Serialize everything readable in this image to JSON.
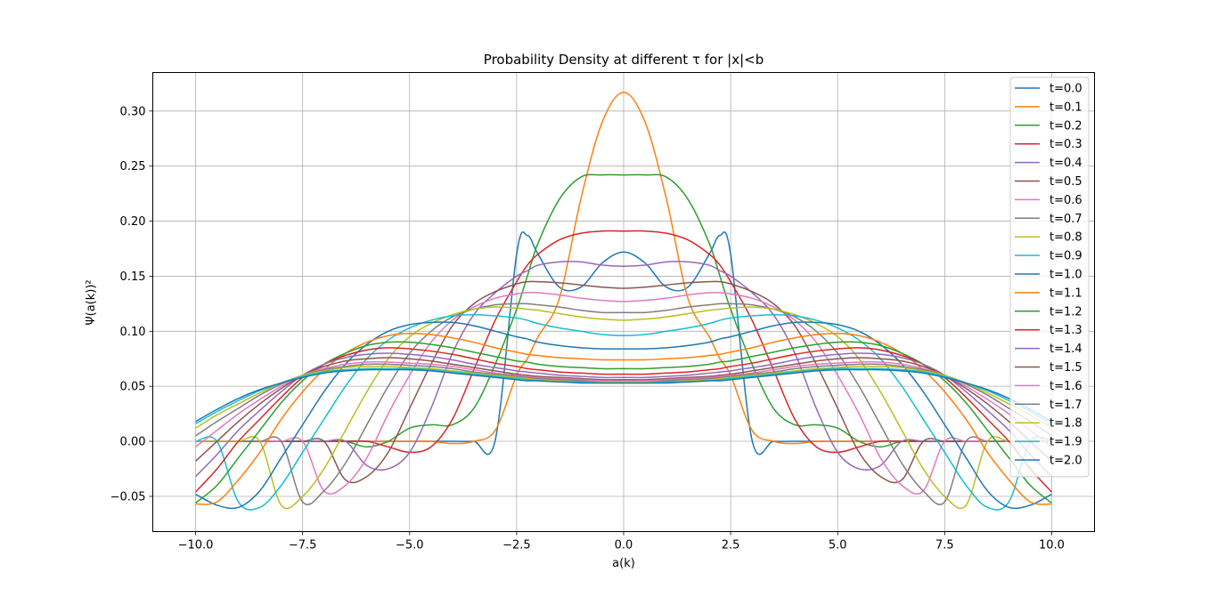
{
  "chart_data": {
    "type": "line",
    "title": "Probability Density at different τ for |x|<b",
    "xlabel": "a(k)",
    "ylabel": "Ψ(a(k))²",
    "xlim": [
      -11,
      11
    ],
    "ylim": [
      -0.082,
      0.335
    ],
    "xticks": [
      -10,
      -7.5,
      -5,
      -2.5,
      0,
      2.5,
      5,
      7.5,
      10
    ],
    "xtick_labels": [
      "−10.0",
      "−7.5",
      "−5.0",
      "−2.5",
      "0.0",
      "2.5",
      "5.0",
      "7.5",
      "10.0"
    ],
    "yticks": [
      -0.05,
      0,
      0.05,
      0.1,
      0.15,
      0.2,
      0.25,
      0.3
    ],
    "ytick_labels": [
      "−0.05",
      "0.00",
      "0.05",
      "0.10",
      "0.15",
      "0.20",
      "0.25",
      "0.30"
    ],
    "grid": true,
    "legend_position": "top-right",
    "x": [
      -10,
      -9.5,
      -9,
      -8.5,
      -8,
      -7.5,
      -7,
      -6.5,
      -6,
      -5.5,
      -5,
      -4.5,
      -4,
      -3.5,
      -3,
      -2.5,
      -2.25,
      -2,
      -1.5,
      -1,
      -0.5,
      0,
      0.5,
      1,
      1.5,
      2,
      2.25,
      2.5,
      3,
      3.5,
      4,
      4.5,
      5,
      5.5,
      6,
      6.5,
      7,
      7.5,
      8,
      8.5,
      9,
      9.5,
      10
    ],
    "series": [
      {
        "name": "t=0.0",
        "color": "#1f77b4",
        "values": [
          0,
          0,
          0,
          0,
          0,
          0,
          0,
          0,
          0,
          0,
          0,
          0,
          0,
          0,
          0.001,
          0.17,
          0.187,
          0.17,
          0.14,
          0.14,
          0.162,
          0.172,
          0.162,
          0.14,
          0.14,
          0.17,
          0.187,
          0.17,
          0.001,
          0,
          0,
          0,
          0,
          0,
          0,
          0,
          0,
          0,
          0,
          0,
          0,
          0,
          0
        ]
      },
      {
        "name": "t=0.1",
        "color": "#ff7f0e",
        "values": [
          0,
          0,
          0,
          0,
          0,
          0,
          0,
          0,
          0,
          0,
          0,
          0,
          -0.002,
          0,
          0.01,
          0.06,
          0.075,
          0.095,
          0.13,
          0.22,
          0.29,
          0.317,
          0.29,
          0.22,
          0.13,
          0.095,
          0.075,
          0.06,
          0.01,
          0,
          -0.002,
          0,
          0,
          0,
          0,
          0,
          0,
          0,
          0,
          0,
          0,
          0,
          0
        ]
      },
      {
        "name": "t=0.2",
        "color": "#2ca02c",
        "values": [
          0,
          0,
          0,
          0,
          0,
          0,
          0,
          0,
          -0.005,
          0,
          0.012,
          0.015,
          0.015,
          0.03,
          0.07,
          0.12,
          0.15,
          0.18,
          0.22,
          0.24,
          0.242,
          0.242,
          0.242,
          0.24,
          0.22,
          0.18,
          0.15,
          0.12,
          0.07,
          0.03,
          0.015,
          0.015,
          0.012,
          0,
          -0.005,
          0,
          0,
          0,
          0,
          0,
          0,
          0,
          0
        ]
      },
      {
        "name": "t=0.3",
        "color": "#d62728",
        "values": [
          0,
          0,
          0,
          0,
          0,
          0,
          0,
          0,
          0,
          -0.005,
          -0.01,
          -0.005,
          0.02,
          0.065,
          0.11,
          0.145,
          0.16,
          0.17,
          0.183,
          0.189,
          0.191,
          0.191,
          0.191,
          0.189,
          0.183,
          0.17,
          0.16,
          0.145,
          0.11,
          0.065,
          0.02,
          -0.005,
          -0.01,
          -0.005,
          0,
          0,
          0,
          0,
          0,
          0,
          0,
          0,
          0
        ]
      },
      {
        "name": "t=0.4",
        "color": "#9467bd",
        "values": [
          0,
          0,
          0,
          0,
          0,
          0,
          0,
          0,
          -0.022,
          -0.025,
          -0.01,
          0.03,
          0.08,
          0.115,
          0.135,
          0.15,
          0.155,
          0.16,
          0.163,
          0.163,
          0.16,
          0.159,
          0.16,
          0.163,
          0.163,
          0.16,
          0.155,
          0.15,
          0.135,
          0.115,
          0.08,
          0.03,
          -0.01,
          -0.025,
          -0.022,
          0,
          0,
          0,
          0,
          0,
          0,
          0,
          0
        ]
      },
      {
        "name": "t=0.5",
        "color": "#8c564b",
        "values": [
          0,
          0,
          0,
          0,
          0,
          0,
          0,
          -0.035,
          -0.032,
          -0.01,
          0.03,
          0.07,
          0.105,
          0.125,
          0.136,
          0.143,
          0.145,
          0.145,
          0.144,
          0.142,
          0.14,
          0.139,
          0.14,
          0.142,
          0.144,
          0.145,
          0.145,
          0.143,
          0.136,
          0.125,
          0.105,
          0.07,
          0.03,
          -0.01,
          -0.032,
          -0.035,
          0,
          0,
          0,
          0,
          0,
          0,
          0
        ]
      },
      {
        "name": "t=0.6",
        "color": "#e377c2",
        "values": [
          0,
          0,
          0,
          0,
          0,
          0,
          -0.045,
          -0.04,
          -0.015,
          0.025,
          0.06,
          0.09,
          0.11,
          0.122,
          0.13,
          0.134,
          0.135,
          0.135,
          0.133,
          0.13,
          0.128,
          0.127,
          0.128,
          0.13,
          0.133,
          0.135,
          0.135,
          0.134,
          0.13,
          0.122,
          0.11,
          0.09,
          0.06,
          0.025,
          -0.015,
          -0.04,
          -0.045,
          0,
          0,
          0,
          0,
          0,
          0
        ]
      },
      {
        "name": "t=0.7",
        "color": "#7f7f7f",
        "values": [
          0,
          0,
          0,
          0,
          0,
          -0.055,
          -0.045,
          -0.02,
          0.015,
          0.05,
          0.08,
          0.1,
          0.113,
          0.12,
          0.124,
          0.125,
          0.125,
          0.124,
          0.122,
          0.119,
          0.117,
          0.117,
          0.117,
          0.119,
          0.122,
          0.124,
          0.125,
          0.125,
          0.124,
          0.12,
          0.113,
          0.1,
          0.08,
          0.05,
          0.015,
          -0.02,
          -0.045,
          -0.055,
          0,
          0,
          0,
          0,
          0
        ]
      },
      {
        "name": "t=0.8",
        "color": "#bcbd22",
        "values": [
          0,
          0,
          0,
          0,
          -0.058,
          -0.05,
          -0.025,
          0.01,
          0.045,
          0.075,
          0.095,
          0.107,
          0.115,
          0.12,
          0.122,
          0.121,
          0.12,
          0.119,
          0.116,
          0.113,
          0.111,
          0.11,
          0.111,
          0.113,
          0.116,
          0.119,
          0.12,
          0.121,
          0.122,
          0.12,
          0.115,
          0.107,
          0.095,
          0.075,
          0.045,
          0.01,
          -0.025,
          -0.05,
          -0.058,
          0,
          0,
          0,
          0
        ]
      },
      {
        "name": "t=0.9",
        "color": "#17becf",
        "values": [
          0,
          0,
          -0.055,
          -0.06,
          -0.04,
          -0.01,
          0.02,
          0.05,
          0.075,
          0.092,
          0.103,
          0.11,
          0.114,
          0.115,
          0.114,
          0.112,
          0.11,
          0.107,
          0.103,
          0.1,
          0.097,
          0.096,
          0.097,
          0.1,
          0.103,
          0.107,
          0.11,
          0.112,
          0.114,
          0.115,
          0.114,
          0.11,
          0.103,
          0.092,
          0.075,
          0.05,
          0.02,
          -0.01,
          -0.04,
          -0.06,
          -0.055,
          0,
          0
        ]
      },
      {
        "name": "t=1.0",
        "color": "#1f77b4",
        "values": [
          -0.048,
          -0.058,
          -0.06,
          -0.045,
          -0.015,
          0.015,
          0.045,
          0.07,
          0.088,
          0.1,
          0.106,
          0.108,
          0.108,
          0.105,
          0.1,
          0.095,
          0.093,
          0.09,
          0.087,
          0.085,
          0.084,
          0.084,
          0.084,
          0.085,
          0.087,
          0.09,
          0.093,
          0.095,
          0.1,
          0.105,
          0.108,
          0.108,
          0.106,
          0.1,
          0.088,
          0.07,
          0.045,
          0.015,
          -0.015,
          -0.045,
          -0.06,
          -0.058,
          -0.048
        ]
      },
      {
        "name": "t=1.1",
        "color": "#ff7f0e",
        "values": [
          -0.057,
          -0.055,
          -0.035,
          -0.01,
          0.02,
          0.045,
          0.065,
          0.08,
          0.09,
          0.096,
          0.098,
          0.097,
          0.094,
          0.09,
          0.085,
          0.081,
          0.079,
          0.078,
          0.076,
          0.075,
          0.074,
          0.074,
          0.074,
          0.075,
          0.076,
          0.078,
          0.079,
          0.081,
          0.085,
          0.09,
          0.094,
          0.097,
          0.098,
          0.096,
          0.09,
          0.08,
          0.065,
          0.045,
          0.02,
          -0.01,
          -0.035,
          -0.055,
          -0.057
        ]
      },
      {
        "name": "t=1.2",
        "color": "#2ca02c",
        "values": [
          -0.056,
          -0.04,
          -0.015,
          0.01,
          0.035,
          0.055,
          0.07,
          0.08,
          0.087,
          0.09,
          0.09,
          0.088,
          0.085,
          0.081,
          0.077,
          0.073,
          0.072,
          0.07,
          0.068,
          0.067,
          0.066,
          0.066,
          0.066,
          0.067,
          0.068,
          0.07,
          0.072,
          0.073,
          0.077,
          0.081,
          0.085,
          0.088,
          0.09,
          0.09,
          0.087,
          0.08,
          0.07,
          0.055,
          0.035,
          0.01,
          -0.015,
          -0.04,
          -0.056
        ]
      },
      {
        "name": "t=1.3",
        "color": "#d62728",
        "values": [
          -0.046,
          -0.025,
          0,
          0.02,
          0.04,
          0.058,
          0.07,
          0.078,
          0.083,
          0.085,
          0.084,
          0.082,
          0.079,
          0.075,
          0.071,
          0.068,
          0.066,
          0.065,
          0.063,
          0.062,
          0.061,
          0.061,
          0.061,
          0.062,
          0.063,
          0.065,
          0.066,
          0.068,
          0.071,
          0.075,
          0.079,
          0.082,
          0.084,
          0.085,
          0.083,
          0.078,
          0.07,
          0.058,
          0.04,
          0.02,
          0,
          -0.025,
          -0.046
        ]
      },
      {
        "name": "t=1.4",
        "color": "#9467bd",
        "values": [
          -0.032,
          -0.012,
          0.01,
          0.028,
          0.045,
          0.06,
          0.07,
          0.076,
          0.079,
          0.08,
          0.079,
          0.077,
          0.074,
          0.07,
          0.067,
          0.064,
          0.063,
          0.062,
          0.06,
          0.059,
          0.058,
          0.058,
          0.058,
          0.059,
          0.06,
          0.062,
          0.063,
          0.064,
          0.067,
          0.07,
          0.074,
          0.077,
          0.079,
          0.08,
          0.079,
          0.076,
          0.07,
          0.06,
          0.045,
          0.028,
          0.01,
          -0.012,
          -0.032
        ]
      },
      {
        "name": "t=1.5",
        "color": "#8c564b",
        "values": [
          -0.018,
          0,
          0.018,
          0.034,
          0.048,
          0.06,
          0.068,
          0.073,
          0.075,
          0.076,
          0.075,
          0.073,
          0.07,
          0.067,
          0.064,
          0.061,
          0.06,
          0.059,
          0.058,
          0.057,
          0.056,
          0.056,
          0.056,
          0.057,
          0.058,
          0.059,
          0.06,
          0.061,
          0.064,
          0.067,
          0.07,
          0.073,
          0.075,
          0.076,
          0.075,
          0.073,
          0.068,
          0.06,
          0.048,
          0.034,
          0.018,
          0,
          -0.018
        ]
      },
      {
        "name": "t=1.6",
        "color": "#e377c2",
        "values": [
          -0.005,
          0.01,
          0.025,
          0.038,
          0.05,
          0.06,
          0.066,
          0.07,
          0.072,
          0.072,
          0.071,
          0.07,
          0.068,
          0.065,
          0.062,
          0.06,
          0.059,
          0.058,
          0.057,
          0.056,
          0.055,
          0.055,
          0.055,
          0.056,
          0.057,
          0.058,
          0.059,
          0.06,
          0.062,
          0.065,
          0.068,
          0.07,
          0.071,
          0.072,
          0.072,
          0.07,
          0.066,
          0.06,
          0.05,
          0.038,
          0.025,
          0.01,
          -0.005
        ]
      },
      {
        "name": "t=1.7",
        "color": "#7f7f7f",
        "values": [
          0.005,
          0.018,
          0.03,
          0.042,
          0.052,
          0.06,
          0.065,
          0.068,
          0.07,
          0.07,
          0.069,
          0.068,
          0.066,
          0.063,
          0.061,
          0.059,
          0.058,
          0.057,
          0.056,
          0.055,
          0.054,
          0.054,
          0.054,
          0.055,
          0.056,
          0.057,
          0.058,
          0.059,
          0.061,
          0.063,
          0.066,
          0.068,
          0.069,
          0.07,
          0.07,
          0.068,
          0.065,
          0.06,
          0.052,
          0.042,
          0.03,
          0.018,
          0.005
        ]
      },
      {
        "name": "t=1.8",
        "color": "#bcbd22",
        "values": [
          0.012,
          0.024,
          0.034,
          0.044,
          0.053,
          0.06,
          0.064,
          0.067,
          0.068,
          0.068,
          0.067,
          0.066,
          0.064,
          0.062,
          0.06,
          0.058,
          0.057,
          0.056,
          0.055,
          0.054,
          0.054,
          0.054,
          0.054,
          0.054,
          0.055,
          0.056,
          0.057,
          0.058,
          0.06,
          0.062,
          0.064,
          0.066,
          0.067,
          0.068,
          0.068,
          0.067,
          0.064,
          0.06,
          0.053,
          0.044,
          0.034,
          0.024,
          0.012
        ]
      },
      {
        "name": "t=1.9",
        "color": "#17becf",
        "values": [
          0.016,
          0.027,
          0.037,
          0.046,
          0.053,
          0.059,
          0.063,
          0.065,
          0.066,
          0.066,
          0.066,
          0.065,
          0.063,
          0.061,
          0.059,
          0.057,
          0.056,
          0.055,
          0.054,
          0.054,
          0.053,
          0.053,
          0.053,
          0.054,
          0.054,
          0.055,
          0.056,
          0.057,
          0.059,
          0.061,
          0.063,
          0.065,
          0.066,
          0.066,
          0.066,
          0.065,
          0.063,
          0.059,
          0.053,
          0.046,
          0.037,
          0.027,
          0.016
        ]
      },
      {
        "name": "t=2.0",
        "color": "#1f77b4",
        "values": [
          0.018,
          0.029,
          0.039,
          0.047,
          0.053,
          0.058,
          0.062,
          0.064,
          0.065,
          0.065,
          0.065,
          0.064,
          0.062,
          0.06,
          0.058,
          0.056,
          0.055,
          0.055,
          0.054,
          0.053,
          0.053,
          0.053,
          0.053,
          0.053,
          0.054,
          0.055,
          0.055,
          0.056,
          0.058,
          0.06,
          0.062,
          0.064,
          0.065,
          0.065,
          0.065,
          0.064,
          0.062,
          0.058,
          0.053,
          0.047,
          0.039,
          0.029,
          0.018
        ]
      }
    ]
  }
}
